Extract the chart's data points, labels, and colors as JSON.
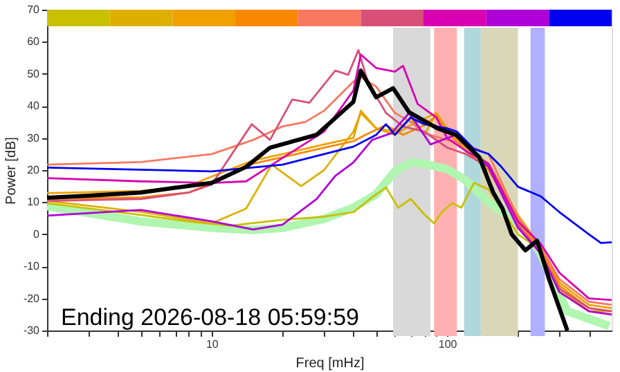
{
  "chart_data": {
    "type": "line",
    "xlabel": "Freq [mHz]",
    "ylabel": "Power [dB]",
    "log": "x",
    "grid": false,
    "marker": "none",
    "line_style": "solid",
    "xlim": [
      2,
      500
    ],
    "ylim": [
      -30,
      70
    ],
    "xticks": [
      {
        "value": 2,
        "label": null
      },
      {
        "value": 3,
        "label": null
      },
      {
        "value": 4,
        "label": null
      },
      {
        "value": 5,
        "label": null
      },
      {
        "value": 6,
        "label": null
      },
      {
        "value": 7,
        "label": null
      },
      {
        "value": 8,
        "label": null
      },
      {
        "value": 9,
        "label": null
      },
      10,
      {
        "value": 20,
        "label": null
      },
      {
        "value": 30,
        "label": null
      },
      {
        "value": 40,
        "label": null
      },
      {
        "value": 50,
        "label": null
      },
      {
        "value": 60,
        "label": null
      },
      {
        "value": 70,
        "label": null
      },
      {
        "value": 80,
        "label": null
      },
      {
        "value": 90,
        "label": null
      },
      100,
      {
        "value": 200,
        "label": null
      },
      {
        "value": 300,
        "label": null
      },
      {
        "value": 400,
        "label": null
      }
    ],
    "yticks": [
      -30,
      -20,
      -10,
      0,
      10,
      20,
      30,
      40,
      50,
      60,
      70
    ],
    "bands": [
      {
        "axis": "x",
        "from": 59,
        "to": 85,
        "color": "#d9d9d9"
      },
      {
        "axis": "x",
        "from": 88,
        "to": 110,
        "color": "#ffb0b0"
      },
      {
        "axis": "x",
        "from": 118,
        "to": 139,
        "color": "#b0d8dc"
      },
      {
        "axis": "x",
        "from": 139,
        "to": 200,
        "color": "#d8d8b8"
      },
      {
        "axis": "x",
        "from": 226,
        "to": 260,
        "color": "#b0b0ff"
      }
    ],
    "annotations": [
      "Ending 2026-08-18 05:59:59"
    ],
    "series": [
      {
        "color": "#b0f5b0",
        "x": [
          2,
          5,
          10,
          15,
          20,
          30,
          40,
          50,
          60,
          70,
          80,
          100,
          119,
          150,
          206,
          247,
          324,
          488
        ],
        "values": [
          8.7,
          4,
          2,
          1.3,
          2,
          4.8,
          8.3,
          12.5,
          19.6,
          22.4,
          22,
          20.3,
          17,
          10,
          3,
          -5.5,
          -24,
          -28.6
        ]
      },
      {
        "color": "#c8c000",
        "x": [
          2,
          5,
          8,
          12,
          20,
          30,
          40,
          47,
          55,
          62,
          70,
          80,
          88,
          95,
          105,
          115,
          130,
          150,
          200,
          250,
          300,
          400,
          500
        ],
        "values": [
          9.7,
          6,
          4,
          2.7,
          4.5,
          5.5,
          6.9,
          11,
          14.6,
          8.3,
          11,
          6.2,
          3.4,
          6.9,
          9.7,
          8.3,
          16,
          14,
          0,
          -5,
          -18,
          -24,
          -24
        ]
      },
      {
        "color": "#ddb000",
        "x": [
          2,
          5,
          10,
          14,
          18,
          24,
          30,
          40,
          43,
          50,
          60,
          70,
          80,
          90,
          100,
          120,
          150,
          200,
          250,
          300,
          400,
          500
        ],
        "values": [
          10.4,
          7,
          3.4,
          8,
          21.7,
          15,
          20,
          32,
          37.8,
          33,
          32,
          36,
          31,
          37.5,
          33,
          27,
          22,
          5,
          -5,
          -17,
          -24,
          -25
        ]
      },
      {
        "color": "#f0a000",
        "x": [
          2,
          5,
          8,
          10,
          15,
          20,
          30,
          40,
          43,
          50,
          60,
          70,
          90,
          100,
          120,
          150,
          200,
          250,
          300,
          400,
          500
        ],
        "values": [
          12.8,
          13.5,
          15,
          18,
          23,
          25,
          28,
          30,
          38.5,
          33,
          31,
          34,
          37.8,
          33,
          27,
          22,
          6,
          -4,
          -15,
          -22,
          -23
        ]
      },
      {
        "color": "#f88800",
        "x": [
          2,
          5,
          8,
          10,
          15,
          20,
          30,
          40,
          45,
          55,
          65,
          80,
          90,
          100,
          120,
          150,
          200,
          250,
          300,
          400,
          500
        ],
        "values": [
          11,
          11.5,
          13,
          16,
          22,
          24,
          27,
          29,
          31,
          34,
          31,
          34,
          37,
          32,
          26,
          20,
          4,
          -5,
          -16,
          -23,
          -24
        ]
      },
      {
        "color": "#f87860",
        "x": [
          2,
          5,
          10,
          15,
          20,
          25,
          30,
          40,
          43,
          50,
          60,
          70,
          80,
          100,
          120,
          150,
          200,
          250,
          300,
          400,
          500
        ],
        "values": [
          21.7,
          22.5,
          25,
          29.4,
          33.6,
          35,
          38.5,
          47.6,
          49,
          46,
          37.8,
          35,
          31.5,
          29.4,
          28,
          25,
          5,
          -4,
          -14,
          -21,
          -22
        ]
      },
      {
        "color": "#d85078",
        "x": [
          2,
          5,
          8,
          10,
          14.8,
          17.7,
          22,
          26,
          33.5,
          38,
          42,
          46,
          55,
          65,
          80,
          100,
          120,
          150,
          200,
          250,
          300,
          400,
          500
        ],
        "values": [
          10.4,
          11,
          13,
          15.5,
          34.3,
          29.4,
          42,
          41,
          51,
          49.7,
          57.4,
          47.6,
          37.8,
          33.6,
          32,
          27,
          25,
          21,
          3,
          -6,
          -17,
          -23,
          -24
        ]
      },
      {
        "color": "#d800b0",
        "x": [
          2,
          5,
          10,
          14,
          20,
          30,
          40,
          43,
          50,
          60,
          65,
          75,
          90,
          100,
          120,
          150,
          200,
          250,
          300,
          400,
          500
        ],
        "values": [
          17.5,
          16.5,
          16,
          16.5,
          23.8,
          32,
          44.8,
          56,
          51.8,
          50.7,
          52.5,
          40.6,
          36.4,
          30,
          26,
          22,
          4,
          -3,
          -12,
          -20,
          -20.5
        ]
      },
      {
        "color": "#b000d8",
        "x": [
          2,
          5,
          10,
          15,
          20,
          27.9,
          33.5,
          40,
          48,
          58,
          69,
          85,
          109,
          130,
          150,
          200,
          250,
          300,
          400,
          500
        ],
        "values": [
          5.8,
          7.6,
          4,
          1.5,
          3,
          11,
          18.2,
          22.4,
          29.4,
          31.5,
          37.8,
          28,
          31,
          26,
          21,
          2,
          -6,
          -18,
          -24,
          -25
        ]
      },
      {
        "color": "#0000f0",
        "x": [
          2,
          10,
          20,
          40,
          50,
          55,
          60,
          70,
          80,
          100,
          110,
          130,
          150,
          170,
          200,
          250,
          300,
          400,
          450,
          500
        ],
        "values": [
          20.8,
          19.6,
          21.7,
          27.3,
          31,
          34.3,
          31,
          36.4,
          34.3,
          33,
          32,
          26.6,
          25,
          21,
          14.8,
          11.8,
          6.9,
          0,
          -2.7,
          -2.5
        ]
      },
      {
        "color": "#000000",
        "x": [
          2,
          3,
          5,
          7,
          10,
          14,
          17.7,
          27.9,
          40,
          43,
          50,
          59,
          69,
          91,
          109,
          137,
          157,
          172,
          188,
          215,
          241,
          271,
          324
        ],
        "values": [
          11.4,
          12,
          13,
          14.5,
          16,
          21,
          27,
          31,
          41.3,
          51,
          42.7,
          45.5,
          38,
          33,
          31,
          24,
          13,
          8,
          0,
          -5,
          -2,
          -14,
          -30
        ]
      }
    ]
  }
}
